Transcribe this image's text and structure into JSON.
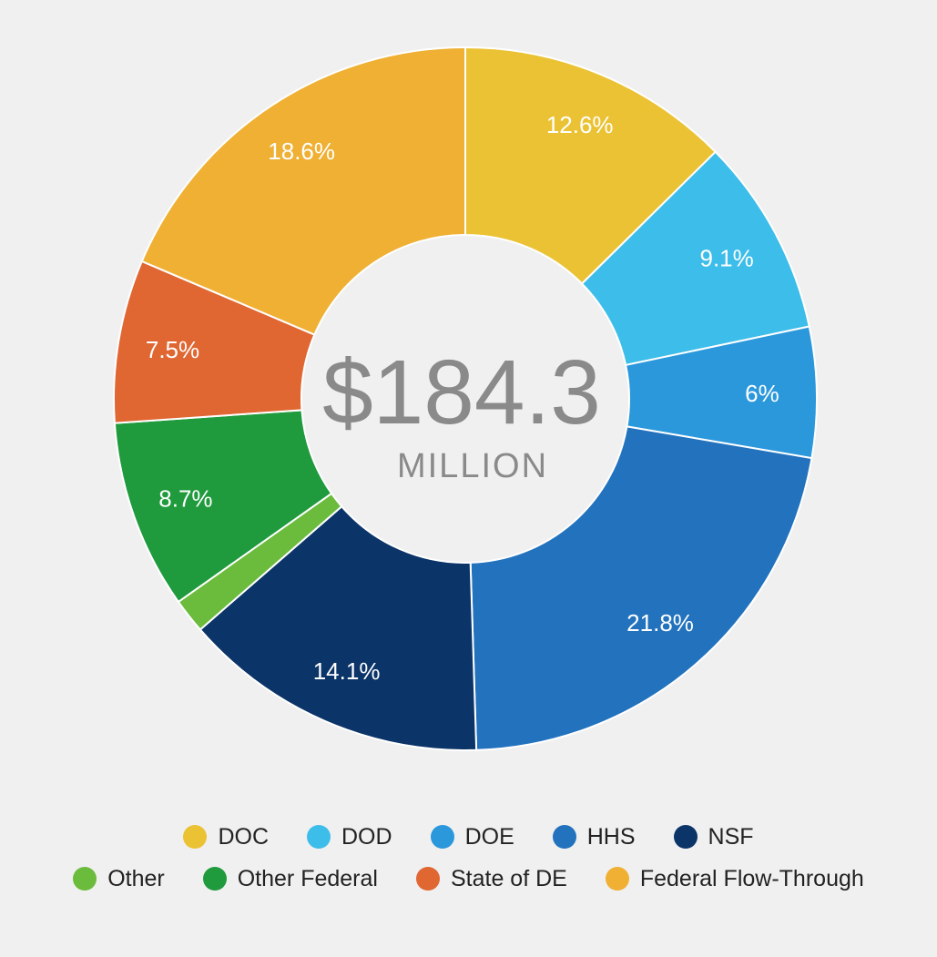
{
  "center": {
    "amount": "$184.3",
    "unit": "MILLION"
  },
  "chart_data": {
    "type": "pie",
    "title": "",
    "donut": true,
    "slices": [
      {
        "name": "DOC",
        "value": 12.6,
        "label": "12.6%",
        "color": "#ebc233"
      },
      {
        "name": "DOD",
        "value": 9.1,
        "label": "9.1%",
        "color": "#3dbde9"
      },
      {
        "name": "DOE",
        "value": 6.0,
        "label": "6%",
        "color": "#2b98dc"
      },
      {
        "name": "HHS",
        "value": 21.8,
        "label": "21.8%",
        "color": "#2272be"
      },
      {
        "name": "NSF",
        "value": 14.1,
        "label": "14.1%",
        "color": "#0b3468"
      },
      {
        "name": "Other",
        "value": 1.6,
        "label": "",
        "color": "#6bbb3d"
      },
      {
        "name": "Other Federal",
        "value": 8.7,
        "label": "8.7%",
        "color": "#1f9a3d"
      },
      {
        "name": "State of DE",
        "value": 7.5,
        "label": "7.5%",
        "color": "#e06632"
      },
      {
        "name": "Federal Flow-Through",
        "value": 18.6,
        "label": "18.6%",
        "color": "#efb034"
      }
    ],
    "legend_placement": "bottom"
  },
  "legend": {
    "rows": [
      [
        {
          "label": "DOC",
          "color": "#ebc233"
        },
        {
          "label": "DOD",
          "color": "#3dbde9"
        },
        {
          "label": "DOE",
          "color": "#2b98dc"
        },
        {
          "label": "HHS",
          "color": "#2272be"
        },
        {
          "label": "NSF",
          "color": "#0b3468"
        }
      ],
      [
        {
          "label": "Other",
          "color": "#6bbb3d"
        },
        {
          "label": "Other Federal",
          "color": "#1f9a3d"
        },
        {
          "label": "State of DE",
          "color": "#e06632"
        },
        {
          "label": "Federal Flow-Through",
          "color": "#efb034"
        }
      ]
    ]
  }
}
